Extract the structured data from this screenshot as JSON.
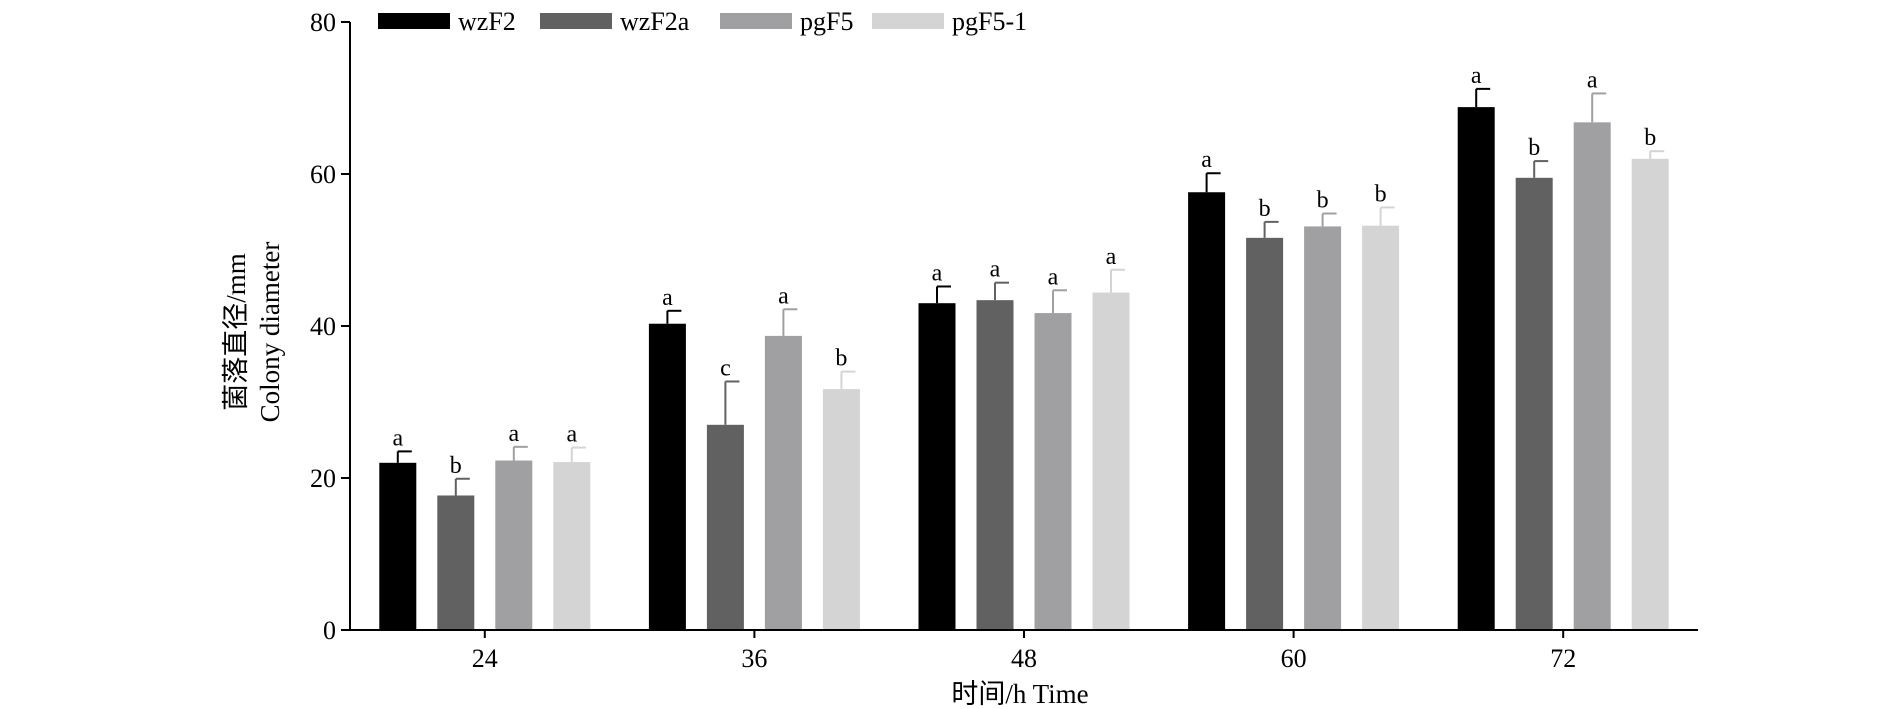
{
  "chart_data": {
    "type": "bar",
    "categories": [
      "24",
      "36",
      "48",
      "60",
      "72"
    ],
    "xlabel": "时间/h Time",
    "ylabel_line1": "菌落直径/mm",
    "ylabel_line2": "Colony diameter",
    "ylim": [
      0,
      80
    ],
    "yticks": [
      "0",
      "20",
      "40",
      "60",
      "80"
    ],
    "grid": false,
    "legend_position": "top",
    "series": [
      {
        "name": "wzF2",
        "color": "#000000",
        "values": [
          22.0,
          40.3,
          43.0,
          57.6,
          68.8
        ],
        "errors": [
          1.5,
          1.7,
          2.2,
          2.5,
          2.4
        ],
        "labels": [
          "a",
          "a",
          "a",
          "a",
          "a"
        ]
      },
      {
        "name": "wzF2a",
        "color": "#616161",
        "values": [
          17.7,
          27.0,
          43.4,
          51.6,
          59.5
        ],
        "errors": [
          2.2,
          5.7,
          2.3,
          2.1,
          2.2
        ],
        "labels": [
          "b",
          "c",
          "a",
          "b",
          "b"
        ]
      },
      {
        "name": "pgF5",
        "color": "#a0a0a3",
        "values": [
          22.3,
          38.7,
          41.7,
          53.1,
          66.8
        ],
        "errors": [
          1.8,
          3.5,
          3.0,
          1.7,
          3.8
        ],
        "labels": [
          "a",
          "a",
          "a",
          "b",
          "a"
        ]
      },
      {
        "name": "pgF5-1",
        "color": "#d4d4d4",
        "values": [
          22.1,
          31.7,
          44.4,
          53.2,
          62.0
        ],
        "errors": [
          1.9,
          2.3,
          3.0,
          2.4,
          1.0
        ],
        "labels": [
          "a",
          "b",
          "a",
          "b",
          "b"
        ]
      }
    ]
  }
}
